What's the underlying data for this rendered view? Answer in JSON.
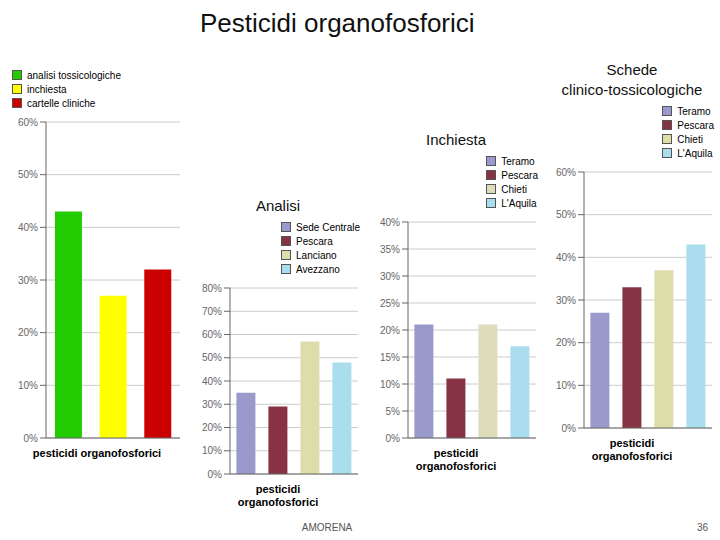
{
  "title": "Pesticidi organofosforici",
  "annotations": [
    "AMORENA",
    "36"
  ],
  "chart_data": [
    {
      "type": "bar",
      "categories": [
        "analisi tossicologiche",
        "inchiesta",
        "cartelle cliniche"
      ],
      "values": [
        0.43,
        0.27,
        0.32
      ],
      "colors": [
        "#22cc00",
        "#ffff00",
        "#cc0000"
      ],
      "ylim": [
        0,
        0.6
      ],
      "yticks": [
        {
          "value": 0.0,
          "label": "0%"
        },
        {
          "value": 0.1,
          "label": "10%"
        },
        {
          "value": 0.2,
          "label": "20%"
        },
        {
          "value": 0.3,
          "label": "30%"
        },
        {
          "value": 0.4,
          "label": "40%"
        },
        {
          "value": 0.5,
          "label": "50%"
        },
        {
          "value": 0.6,
          "label": "60%"
        }
      ],
      "xlabel": "pesticidi organofosforici",
      "grid": true,
      "legend": "top",
      "tick_labels": "y"
    },
    {
      "type": "bar",
      "title": "Analisi",
      "categories": [
        "Sede Centrale",
        "Pescara",
        "Lanciano",
        "Avezzano"
      ],
      "values": [
        0.35,
        0.29,
        0.57,
        0.48
      ],
      "colors": [
        "#9999cc",
        "#883344",
        "#ddddaa",
        "#aaddee"
      ],
      "ylim": [
        0,
        0.8
      ],
      "yticks": [
        {
          "value": 0.0,
          "label": "0%"
        },
        {
          "value": 0.1,
          "label": "10%"
        },
        {
          "value": 0.2,
          "label": "20%"
        },
        {
          "value": 0.3,
          "label": "30%"
        },
        {
          "value": 0.4,
          "label": "40%"
        },
        {
          "value": 0.5,
          "label": "50%"
        },
        {
          "value": 0.6,
          "label": "60%"
        },
        {
          "value": 0.7,
          "label": "70%"
        },
        {
          "value": 0.8,
          "label": "80%"
        }
      ],
      "xlabel": "pesticidi\norganofosforici",
      "grid": true,
      "legend": "upper right",
      "tick_labels": "y"
    },
    {
      "type": "bar",
      "title": "Inchiesta",
      "categories": [
        "Teramo",
        "Pescara",
        "Chieti",
        "L'Aquila"
      ],
      "values": [
        0.21,
        0.11,
        0.21,
        0.17
      ],
      "colors": [
        "#9999cc",
        "#883344",
        "#ddddbb",
        "#aaddee"
      ],
      "ylim": [
        0,
        0.4
      ],
      "yticks": [
        {
          "value": 0.0,
          "label": "0%"
        },
        {
          "value": 0.05,
          "label": "5%"
        },
        {
          "value": 0.1,
          "label": "10%"
        },
        {
          "value": 0.15,
          "label": "15%"
        },
        {
          "value": 0.2,
          "label": "20%"
        },
        {
          "value": 0.25,
          "label": "25%"
        },
        {
          "value": 0.3,
          "label": "30%"
        },
        {
          "value": 0.35,
          "label": "35%"
        },
        {
          "value": 0.4,
          "label": "40%"
        }
      ],
      "xlabel": "pesticidi\norganofosforici",
      "grid": true,
      "legend": "upper right",
      "tick_labels": "y"
    },
    {
      "type": "bar",
      "title": "Schede\nclinico-tossicologiche",
      "categories": [
        "Teramo",
        "Pescara",
        "Chieti",
        "L'Aquila"
      ],
      "values": [
        0.27,
        0.33,
        0.37,
        0.43
      ],
      "colors": [
        "#9999cc",
        "#883344",
        "#ddddaa",
        "#aaddee"
      ],
      "ylim": [
        0,
        0.6
      ],
      "yticks": [
        {
          "value": 0.0,
          "label": "0%"
        },
        {
          "value": 0.1,
          "label": "10%"
        },
        {
          "value": 0.2,
          "label": "20%"
        },
        {
          "value": 0.3,
          "label": "30%"
        },
        {
          "value": 0.4,
          "label": "40%"
        },
        {
          "value": 0.5,
          "label": "50%"
        },
        {
          "value": 0.6,
          "label": "60%"
        }
      ],
      "xlabel": "pesticidi\norganofosforici",
      "grid": true,
      "legend": "upper right",
      "tick_labels": "y"
    }
  ]
}
